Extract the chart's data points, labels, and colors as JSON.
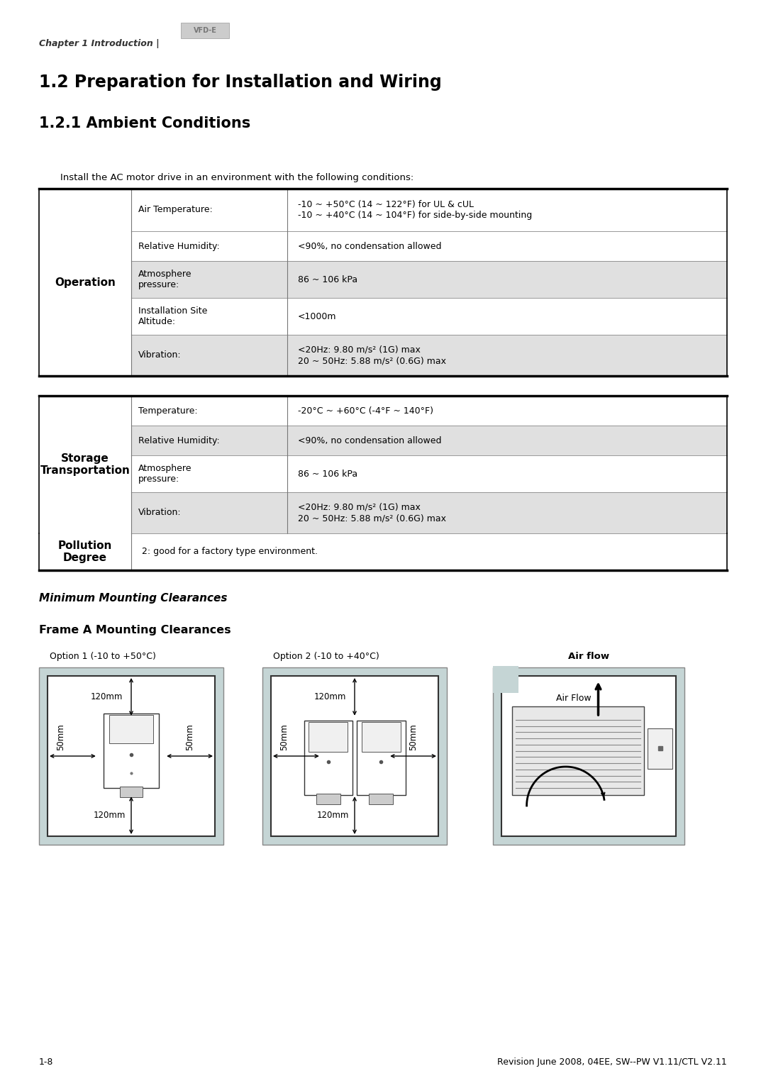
{
  "bg_color": "#ffffff",
  "chapter_header": "Chapter 1 Introduction |",
  "logo_text": "VFD-E",
  "section_title": "1.2 Preparation for Installation and Wiring",
  "subsection_title": "1.2.1 Ambient Conditions",
  "intro_text": "Install the AC motor drive in an environment with the following conditions:",
  "operation_rows": [
    {
      "label": "Air Temperature:",
      "value": "-10 ~ +50°C (14 ~ 122°F) for UL & cUL\n-10 ~ +40°C (14 ~ 104°F) for side-by-side mounting",
      "shaded": false
    },
    {
      "label": "Relative Humidity:",
      "value": "<90%, no condensation allowed",
      "shaded": false
    },
    {
      "label": "Atmosphere\npressure:",
      "value": "86 ~ 106 kPa",
      "shaded": true
    },
    {
      "label": "Installation Site\nAltitude:",
      "value": "<1000m",
      "shaded": false
    },
    {
      "label": "Vibration:",
      "value": "<20Hz: 9.80 m/s² (1G) max\n20 ~ 50Hz: 5.88 m/s² (0.6G) max",
      "shaded": true
    }
  ],
  "storage_rows": [
    {
      "label": "Temperature:",
      "value": "-20°C ~ +60°C (-4°F ~ 140°F)",
      "shaded": false
    },
    {
      "label": "Relative Humidity:",
      "value": "<90%, no condensation allowed",
      "shaded": true
    },
    {
      "label": "Atmosphere\npressure:",
      "value": "86 ~ 106 kPa",
      "shaded": false
    },
    {
      "label": "Vibration:",
      "value": "<20Hz: 9.80 m/s² (1G) max\n20 ~ 50Hz: 5.88 m/s² (0.6G) max",
      "shaded": true
    }
  ],
  "operation_label": "Operation",
  "storage_label": "Storage\nTransportation",
  "pollution_label": "Pollution\nDegree",
  "pollution_value": "2: good for a factory type environment.",
  "mounting_title": "Minimum Mounting Clearances",
  "frame_title": "Frame A Mounting Clearances",
  "option1_label": "Option 1 (-10 to +50°C)",
  "option2_label": "Option 2 (-10 to +40°C)",
  "airflow_label": "Air flow",
  "footer_left": "1-8",
  "footer_right": "Revision June 2008, 04EE, SW--PW V1.11/CTL V2.11",
  "shade_color": "#e0e0e0",
  "outer_box_color": "#c8d8d8",
  "thick_lw": 2.5,
  "thin_lw": 0.8
}
